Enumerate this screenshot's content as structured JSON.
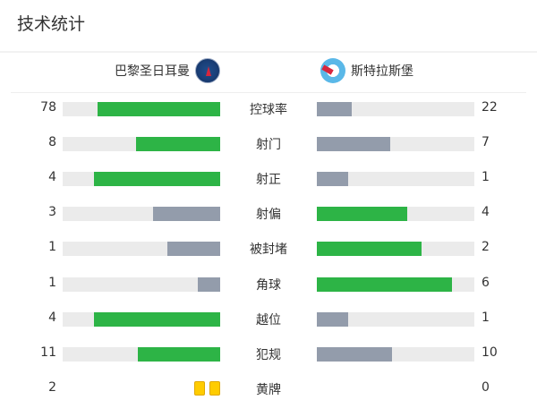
{
  "title": "技术统计",
  "home_team": {
    "name": "巴黎圣日耳曼",
    "logo": "psg-crest"
  },
  "away_team": {
    "name": "斯特拉斯堡",
    "logo": "strasbourg-crest"
  },
  "colors": {
    "leader": "#2db446",
    "trailer": "#939cab",
    "track": "#ebebeb",
    "yellow_card": "#ffcc00"
  },
  "stats": [
    {
      "label": "控球率",
      "home": "78",
      "away": "22"
    },
    {
      "label": "射门",
      "home": "8",
      "away": "7"
    },
    {
      "label": "射正",
      "home": "4",
      "away": "1"
    },
    {
      "label": "射偏",
      "home": "3",
      "away": "4"
    },
    {
      "label": "被封堵",
      "home": "1",
      "away": "2"
    },
    {
      "label": "角球",
      "home": "1",
      "away": "6"
    },
    {
      "label": "越位",
      "home": "4",
      "away": "1"
    },
    {
      "label": "犯规",
      "home": "11",
      "away": "10"
    }
  ],
  "yellow_cards": {
    "label": "黄牌",
    "home": "2",
    "away": "0"
  }
}
